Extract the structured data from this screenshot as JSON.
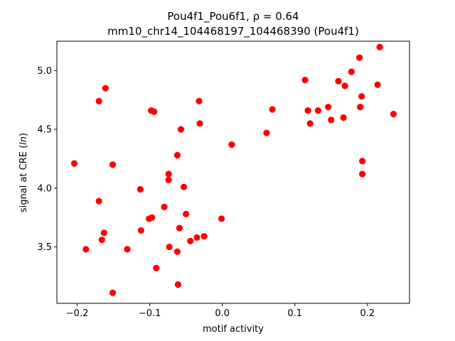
{
  "chart_data": {
    "type": "scatter",
    "title_line1": "Pou4f1_Pou6f1, ρ = 0.64",
    "title_line2": "mm10_chr14_104468197_104468390 (Pou4f1)",
    "xlabel": "motif activity",
    "ylabel_prefix": "signal at CRE (",
    "ylabel_italic": "ln",
    "ylabel_suffix": ")",
    "xlim": [
      -0.228,
      0.258
    ],
    "ylim": [
      3.02,
      5.25
    ],
    "xticks": [
      -0.2,
      -0.1,
      0.0,
      0.1,
      0.2
    ],
    "xtick_labels": [
      "−0.2",
      "−0.1",
      "0.0",
      "0.1",
      "0.2"
    ],
    "yticks": [
      3.5,
      4.0,
      4.5,
      5.0
    ],
    "ytick_labels": [
      "3.5",
      "4.0",
      "4.5",
      "5.0"
    ],
    "marker_color": "#ff0000",
    "grid": false,
    "points": [
      {
        "x": -0.204,
        "y": 4.21
      },
      {
        "x": -0.188,
        "y": 3.48
      },
      {
        "x": -0.17,
        "y": 4.74
      },
      {
        "x": -0.17,
        "y": 3.89
      },
      {
        "x": -0.166,
        "y": 3.56
      },
      {
        "x": -0.163,
        "y": 3.62
      },
      {
        "x": -0.161,
        "y": 4.85
      },
      {
        "x": -0.151,
        "y": 4.2
      },
      {
        "x": -0.151,
        "y": 3.11
      },
      {
        "x": -0.131,
        "y": 3.48
      },
      {
        "x": -0.113,
        "y": 3.99
      },
      {
        "x": -0.112,
        "y": 3.64
      },
      {
        "x": -0.101,
        "y": 3.74
      },
      {
        "x": -0.098,
        "y": 4.66
      },
      {
        "x": -0.097,
        "y": 3.75
      },
      {
        "x": -0.094,
        "y": 4.65
      },
      {
        "x": -0.091,
        "y": 3.32
      },
      {
        "x": -0.08,
        "y": 3.84
      },
      {
        "x": -0.074,
        "y": 4.12
      },
      {
        "x": -0.074,
        "y": 4.07
      },
      {
        "x": -0.073,
        "y": 3.5
      },
      {
        "x": -0.062,
        "y": 4.28
      },
      {
        "x": -0.062,
        "y": 3.46
      },
      {
        "x": -0.061,
        "y": 3.18
      },
      {
        "x": -0.059,
        "y": 3.66
      },
      {
        "x": -0.057,
        "y": 4.5
      },
      {
        "x": -0.053,
        "y": 4.01
      },
      {
        "x": -0.05,
        "y": 3.78
      },
      {
        "x": -0.044,
        "y": 3.55
      },
      {
        "x": -0.035,
        "y": 3.58
      },
      {
        "x": -0.032,
        "y": 4.74
      },
      {
        "x": -0.031,
        "y": 4.55
      },
      {
        "x": -0.025,
        "y": 3.59
      },
      {
        "x": -0.001,
        "y": 3.74
      },
      {
        "x": 0.013,
        "y": 4.37
      },
      {
        "x": 0.061,
        "y": 4.47
      },
      {
        "x": 0.069,
        "y": 4.67
      },
      {
        "x": 0.114,
        "y": 4.92
      },
      {
        "x": 0.118,
        "y": 4.66
      },
      {
        "x": 0.121,
        "y": 4.55
      },
      {
        "x": 0.132,
        "y": 4.66
      },
      {
        "x": 0.146,
        "y": 4.69
      },
      {
        "x": 0.15,
        "y": 4.58
      },
      {
        "x": 0.16,
        "y": 4.91
      },
      {
        "x": 0.167,
        "y": 4.6
      },
      {
        "x": 0.169,
        "y": 4.87
      },
      {
        "x": 0.178,
        "y": 4.99
      },
      {
        "x": 0.189,
        "y": 5.11
      },
      {
        "x": 0.19,
        "y": 4.69
      },
      {
        "x": 0.192,
        "y": 4.78
      },
      {
        "x": 0.193,
        "y": 4.23
      },
      {
        "x": 0.193,
        "y": 4.12
      },
      {
        "x": 0.214,
        "y": 4.88
      },
      {
        "x": 0.217,
        "y": 5.2
      },
      {
        "x": 0.236,
        "y": 4.63
      }
    ]
  }
}
